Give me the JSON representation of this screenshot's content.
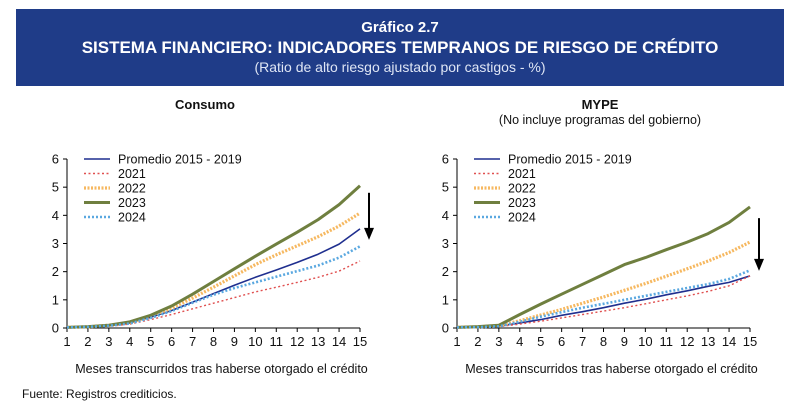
{
  "header": {
    "figure_number": "Gráfico 2.7",
    "title": "SISTEMA FINANCIERO: INDICADORES TEMPRANOS DE RIESGO DE CRÉDITO",
    "subtitle": "(Ratio de alto riesgo ajustado por castigos - %)"
  },
  "source": "Fuente: Registros crediticios.",
  "chart_data": [
    {
      "type": "line",
      "title": "Consumo",
      "subtitle": "",
      "xlabel": "Meses transcurridos tras haberse otorgado el crédito",
      "ylabel": "",
      "x": [
        1,
        2,
        3,
        4,
        5,
        6,
        7,
        8,
        9,
        10,
        11,
        12,
        13,
        14,
        15
      ],
      "xlim": [
        1,
        15
      ],
      "ylim": [
        0,
        6
      ],
      "yticks": [
        0,
        1,
        2,
        3,
        4,
        5,
        6
      ],
      "grid": false,
      "legend": "top-left",
      "annotation": "downward-arrow",
      "series": [
        {
          "name": "Promedio 2015 - 2019",
          "color": "#1f2f8f",
          "style": "solid",
          "values": [
            0.02,
            0.04,
            0.08,
            0.18,
            0.38,
            0.62,
            0.92,
            1.22,
            1.52,
            1.8,
            2.06,
            2.33,
            2.62,
            2.98,
            3.52
          ]
        },
        {
          "name": "2021",
          "color": "#e05050",
          "style": "dotted",
          "values": [
            0.01,
            0.03,
            0.06,
            0.14,
            0.3,
            0.48,
            0.68,
            0.88,
            1.08,
            1.28,
            1.45,
            1.62,
            1.8,
            2.02,
            2.38
          ]
        },
        {
          "name": "2022",
          "color": "#f6b860",
          "style": "dashed-thick",
          "values": [
            0.02,
            0.04,
            0.1,
            0.2,
            0.42,
            0.7,
            1.06,
            1.45,
            1.85,
            2.25,
            2.6,
            2.92,
            3.24,
            3.62,
            4.08
          ]
        },
        {
          "name": "2023",
          "color": "#6f7f3f",
          "style": "solid-thick",
          "values": [
            0.02,
            0.05,
            0.1,
            0.22,
            0.45,
            0.78,
            1.2,
            1.65,
            2.1,
            2.55,
            2.98,
            3.4,
            3.85,
            4.38,
            5.05
          ]
        },
        {
          "name": "2024",
          "color": "#5aa8e0",
          "style": "dotted-thick",
          "values": [
            0.02,
            0.04,
            0.08,
            0.16,
            0.36,
            0.6,
            0.9,
            1.18,
            1.42,
            1.62,
            1.82,
            2.02,
            2.22,
            2.5,
            2.9
          ]
        }
      ]
    },
    {
      "type": "line",
      "title": "MYPE",
      "subtitle": "(No incluye programas del gobierno)",
      "xlabel": "Meses transcurridos tras haberse otorgado el crédito",
      "ylabel": "",
      "x": [
        1,
        2,
        3,
        4,
        5,
        6,
        7,
        8,
        9,
        10,
        11,
        12,
        13,
        14,
        15
      ],
      "xlim": [
        1,
        15
      ],
      "ylim": [
        0,
        6
      ],
      "yticks": [
        0,
        1,
        2,
        3,
        4,
        5,
        6
      ],
      "grid": false,
      "legend": "top-left",
      "annotation": "downward-arrow",
      "series": [
        {
          "name": "Promedio 2015 - 2019",
          "color": "#1f2f8f",
          "style": "solid",
          "values": [
            0.02,
            0.03,
            0.06,
            0.18,
            0.3,
            0.45,
            0.58,
            0.72,
            0.88,
            1.02,
            1.18,
            1.32,
            1.48,
            1.62,
            1.85
          ]
        },
        {
          "name": "2021",
          "color": "#e05050",
          "style": "dotted",
          "values": [
            0.01,
            0.02,
            0.05,
            0.14,
            0.24,
            0.36,
            0.48,
            0.6,
            0.72,
            0.86,
            1.0,
            1.14,
            1.3,
            1.5,
            1.85
          ]
        },
        {
          "name": "2022",
          "color": "#f6b860",
          "style": "dashed-thick",
          "values": [
            0.02,
            0.04,
            0.08,
            0.26,
            0.46,
            0.66,
            0.88,
            1.1,
            1.34,
            1.58,
            1.84,
            2.1,
            2.38,
            2.68,
            3.05
          ]
        },
        {
          "name": "2023",
          "color": "#6f7f3f",
          "style": "solid-thick",
          "values": [
            0.02,
            0.05,
            0.1,
            0.48,
            0.85,
            1.2,
            1.55,
            1.9,
            2.25,
            2.5,
            2.78,
            3.05,
            3.35,
            3.75,
            4.3
          ]
        },
        {
          "name": "2024",
          "color": "#5aa8e0",
          "style": "dotted-thick",
          "values": [
            0.02,
            0.03,
            0.06,
            0.22,
            0.4,
            0.56,
            0.72,
            0.86,
            1.0,
            1.14,
            1.28,
            1.42,
            1.56,
            1.74,
            2.05
          ]
        }
      ]
    }
  ]
}
